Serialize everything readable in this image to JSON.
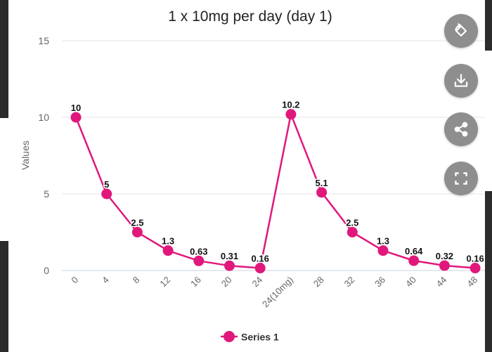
{
  "chart_data": {
    "type": "line",
    "title": "1 x 10mg per day (day 1)",
    "ylabel": "Values",
    "xlabel": "",
    "categories": [
      "0",
      "4",
      "8",
      "12",
      "16",
      "20",
      "24",
      "24(10mg)",
      "28",
      "32",
      "36",
      "40",
      "44",
      "48"
    ],
    "series": [
      {
        "name": "Series 1",
        "values": [
          10,
          5,
          2.5,
          1.3,
          0.63,
          0.31,
          0.16,
          10.2,
          5.1,
          2.5,
          1.3,
          0.64,
          0.32,
          0.16
        ],
        "labels": [
          "10",
          "5",
          "2.5",
          "1.3",
          "0.63",
          "0.31",
          "0.16",
          "10.2",
          "5.1",
          "2.5",
          "1.3",
          "0.64",
          "0.32",
          "0.16"
        ]
      }
    ],
    "yticks": [
      "0",
      "5",
      "10",
      "15"
    ],
    "ylim": [
      0,
      15
    ],
    "grid": true,
    "legend_position": "bottom",
    "color": "#e0187c"
  },
  "toolbar": {
    "buttons": [
      {
        "icon": "rotate-icon"
      },
      {
        "icon": "download-icon"
      },
      {
        "icon": "share-icon"
      },
      {
        "icon": "fullscreen-icon"
      }
    ]
  }
}
